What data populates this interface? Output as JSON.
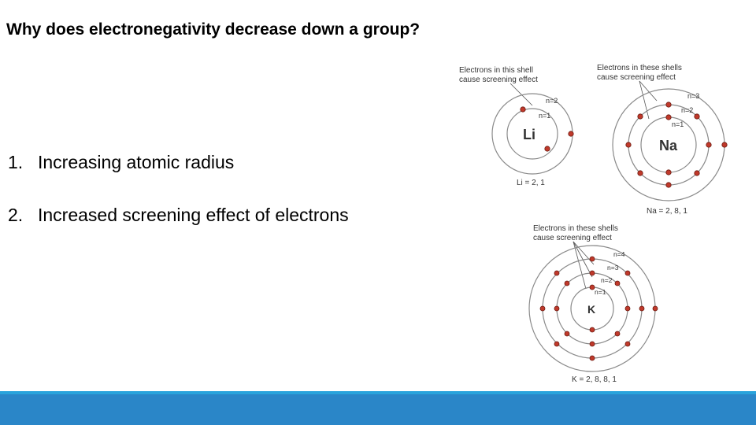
{
  "slide": {
    "title": "Why does electronegativity decrease down a group?",
    "points": [
      {
        "number": "1.",
        "text": "Increasing atomic radius"
      },
      {
        "number": "2.",
        "text": "Increased screening effect of electrons"
      }
    ]
  },
  "diagrams": {
    "li": {
      "caption_line1": "Electrons in this shell",
      "caption_line2": "cause screening effect",
      "symbol": "Li",
      "shell_labels": [
        "n=2",
        "n=1"
      ],
      "config": "Li = 2, 1"
    },
    "na": {
      "caption_line1": "Electrons in these shells",
      "caption_line2": "cause screening effect",
      "symbol": "Na",
      "shell_labels": [
        "n=3",
        "n=2",
        "n=1"
      ],
      "config": "Na = 2, 8, 1"
    },
    "k": {
      "caption_line1": "Electrons in these shells",
      "caption_line2": "cause screening effect",
      "symbol": "K",
      "shell_labels": [
        "n=4",
        "n=3",
        "n=2",
        "n=1"
      ],
      "config": "K = 2, 8, 8, 1"
    }
  },
  "colors": {
    "electron": "#c0392b",
    "footer_bar": "#2a86c8",
    "footer_line": "#29a3dc"
  }
}
